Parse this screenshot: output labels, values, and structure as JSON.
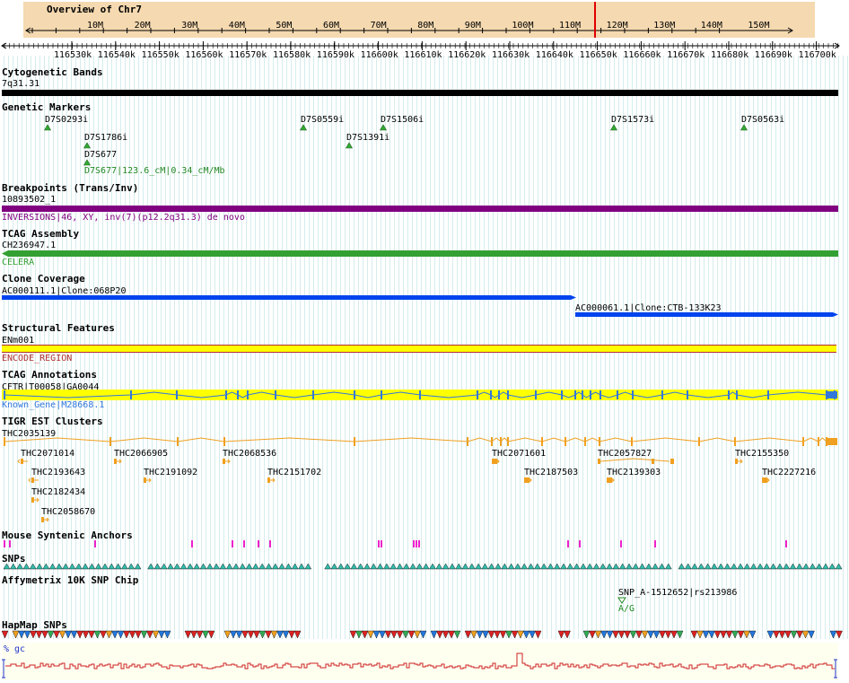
{
  "overview": {
    "title": "Overview of Chr7",
    "ticks": [
      "10M",
      "20M",
      "30M",
      "40M",
      "50M",
      "60M",
      "70M",
      "80M",
      "90M",
      "100M",
      "110M",
      "120M",
      "130M",
      "140M",
      "150M"
    ],
    "marker_color": "#e00000"
  },
  "ruler": {
    "ticks": [
      "116530k",
      "116540k",
      "116550k",
      "116560k",
      "116570k",
      "116580k",
      "116590k",
      "116600k",
      "116610k",
      "116620k",
      "116630k",
      "116640k",
      "116650k",
      "116660k",
      "116670k",
      "116680k",
      "116690k",
      "116700k"
    ]
  },
  "tracks": {
    "cyto": {
      "title": "Cytogenetic Bands",
      "band": "7q31.31",
      "color": "#000000"
    },
    "markers": {
      "title": "Genetic Markers",
      "items": [
        "D7S0293i",
        "D7S0559i",
        "D7S1506i",
        "D7S1573i",
        "D7S0563i",
        "D7S1786i",
        "D7S1391i",
        "D7S677"
      ],
      "detail": "D7S677|123.6_cM|0.34_cM/Mb",
      "color": "#33aa33"
    },
    "breakpoints": {
      "title": "Breakpoints (Trans/Inv)",
      "name": "10893502_1",
      "desc": "INVERSIONS|46, XY, inv(7)(p12.2q31.3) de novo",
      "color": "#800080"
    },
    "tcag_assembly": {
      "title": "TCAG Assembly",
      "name": "CH236947.1",
      "source": "CELERA",
      "color": "#33a033"
    },
    "clone": {
      "title": "Clone Coverage",
      "items": [
        "AC000111.1|Clone:068P20",
        "AC000061.1|Clone:CTB-133K23"
      ],
      "color": "#0044ee"
    },
    "structural": {
      "title": "Structural Features",
      "name": "ENm001",
      "desc": "ENCODE_REGION",
      "color": "#ffff00"
    },
    "tcag_annot": {
      "title": "TCAG Annotations",
      "name": "CFTR|T00058|GA0044",
      "desc": "Known_Gene|M28668.1",
      "color": "#3377dd"
    },
    "est": {
      "title": "TIGR EST Clusters",
      "main": "THC2035139",
      "items": [
        "THC2071014",
        "THC2066905",
        "THC2068536",
        "THC2071601",
        "THC2057827",
        "THC2155350",
        "THC2193643",
        "THC2191092",
        "THC2151702",
        "THC2187503",
        "THC2139303",
        "THC2227216",
        "THC2182434",
        "THC2058670"
      ],
      "color": "#f0a020"
    },
    "mouse": {
      "title": "Mouse Syntenic Anchors",
      "color": "#ee22cc"
    },
    "snps": {
      "title": "SNPs",
      "color": "#33bbaa"
    },
    "affy": {
      "title": "Affymetrix 10K SNP Chip",
      "name": "SNP_A-1512652|rs213986",
      "allele": "A/G"
    },
    "hapmap": {
      "title": "HapMap SNPs"
    },
    "gc": {
      "title": "% gc",
      "color": "#cc2222"
    }
  }
}
